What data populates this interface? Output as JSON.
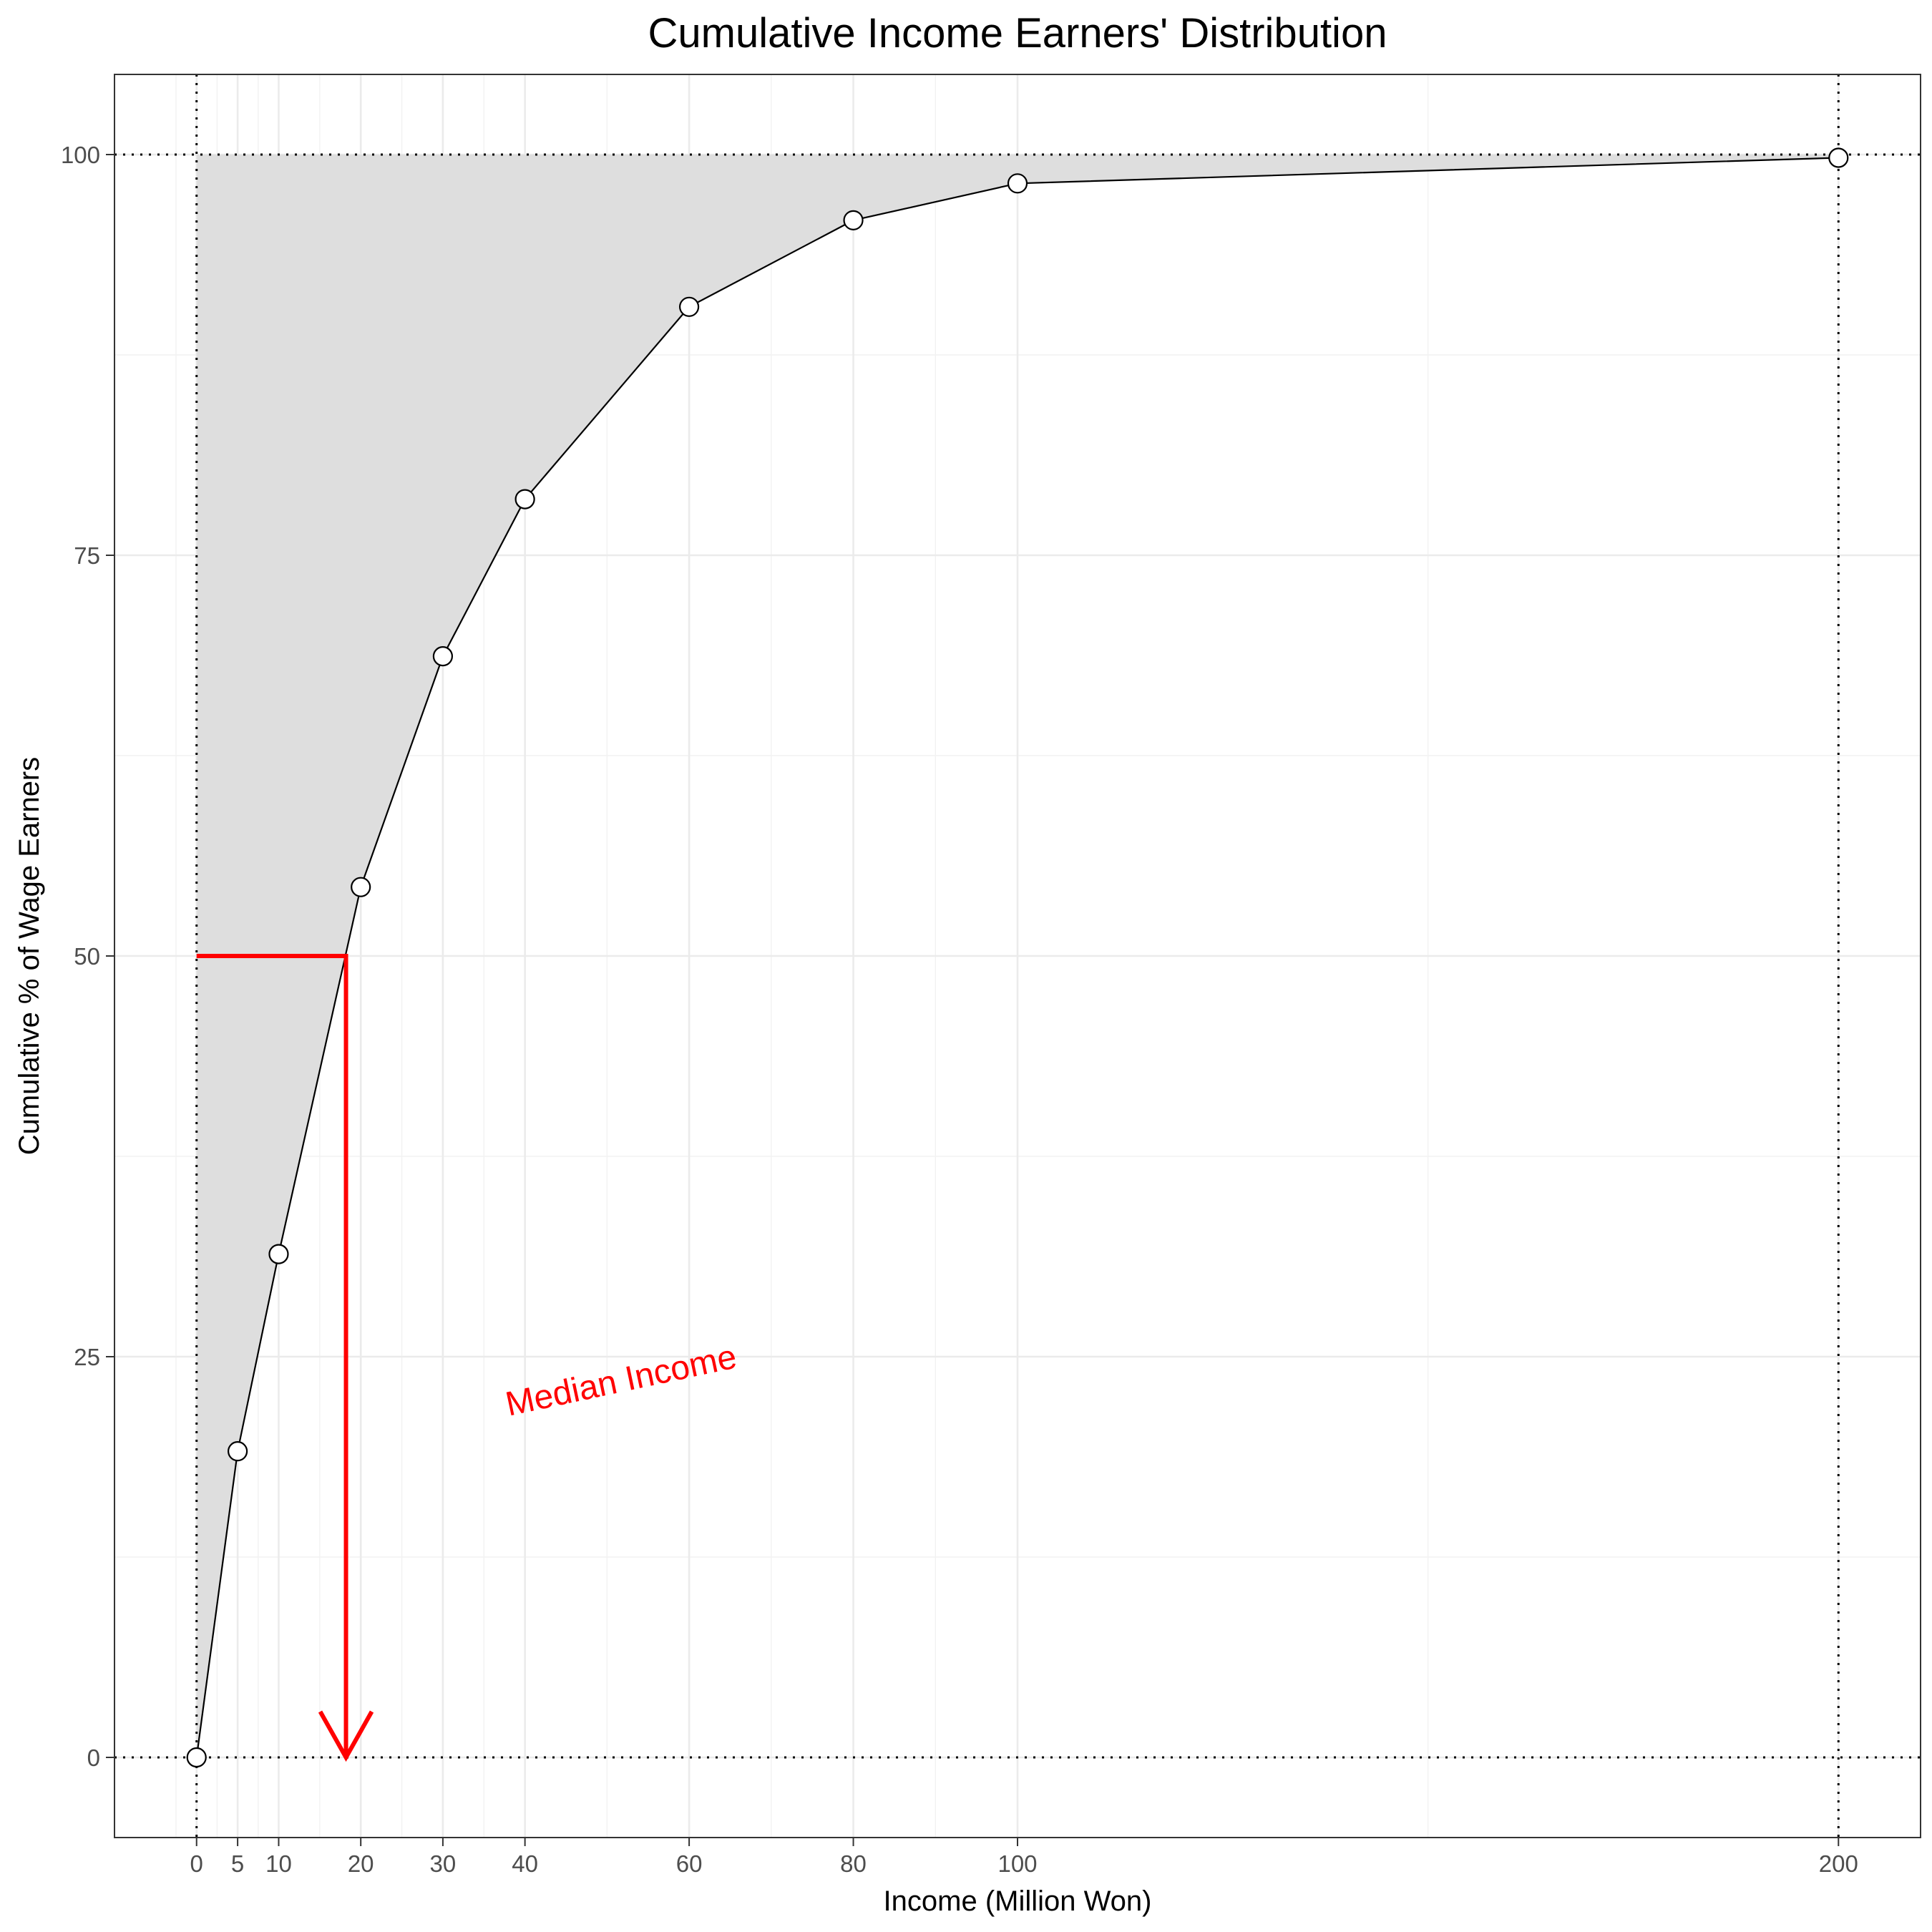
{
  "chart_data": {
    "type": "line",
    "title": "Cumulative Income Earners' Distribution",
    "xlabel": "Income (Million Won)",
    "ylabel": "Cumulative % of Wage Earners",
    "xlim": [
      -10,
      210
    ],
    "ylim": [
      -5,
      105
    ],
    "x_ticks": [
      0,
      5,
      10,
      20,
      30,
      40,
      60,
      80,
      100,
      200
    ],
    "y_ticks": [
      0,
      25,
      50,
      75,
      100
    ],
    "grid": true,
    "x_reference_lines": [
      0,
      200
    ],
    "y_reference_lines": [
      0,
      100
    ],
    "series": [
      {
        "points": [
          {
            "x": 0,
            "y": 0
          },
          {
            "x": 5,
            "y": 19.1
          },
          {
            "x": 10,
            "y": 31.4
          },
          {
            "x": 20,
            "y": 54.3
          },
          {
            "x": 30,
            "y": 68.7
          },
          {
            "x": 40,
            "y": 78.5
          },
          {
            "x": 60,
            "y": 90.5
          },
          {
            "x": 80,
            "y": 95.9
          },
          {
            "x": 100,
            "y": 98.2
          },
          {
            "x": 200,
            "y": 99.8
          }
        ]
      }
    ],
    "fill_color": "#dedede",
    "annotation": {
      "text": "Median Income",
      "color": "#ff0000",
      "median_x": 18.2,
      "median_y": 50,
      "text_x": 38,
      "text_y": 21.3
    }
  }
}
